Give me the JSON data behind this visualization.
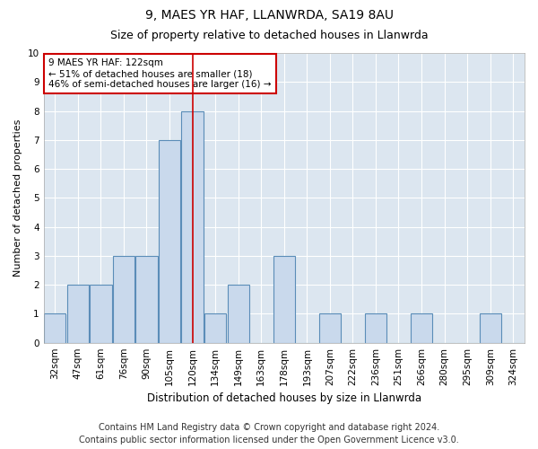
{
  "title1": "9, MAES YR HAF, LLANWRDA, SA19 8AU",
  "title2": "Size of property relative to detached houses in Llanwrda",
  "xlabel": "Distribution of detached houses by size in Llanwrda",
  "ylabel": "Number of detached properties",
  "categories": [
    "32sqm",
    "47sqm",
    "61sqm",
    "76sqm",
    "90sqm",
    "105sqm",
    "120sqm",
    "134sqm",
    "149sqm",
    "163sqm",
    "178sqm",
    "193sqm",
    "207sqm",
    "222sqm",
    "236sqm",
    "251sqm",
    "266sqm",
    "280sqm",
    "295sqm",
    "309sqm",
    "324sqm"
  ],
  "values": [
    1,
    2,
    2,
    3,
    3,
    7,
    8,
    1,
    2,
    0,
    3,
    0,
    1,
    0,
    1,
    0,
    1,
    0,
    0,
    1,
    0
  ],
  "bar_color": "#c9d9ec",
  "bar_edge_color": "#5b8db8",
  "red_line_index": 6,
  "ylim": [
    0,
    10
  ],
  "yticks": [
    0,
    1,
    2,
    3,
    4,
    5,
    6,
    7,
    8,
    9,
    10
  ],
  "annotation_text": "9 MAES YR HAF: 122sqm\n← 51% of detached houses are smaller (18)\n46% of semi-detached houses are larger (16) →",
  "annotation_box_color": "#ffffff",
  "annotation_box_edge_color": "#cc0000",
  "footer1": "Contains HM Land Registry data © Crown copyright and database right 2024.",
  "footer2": "Contains public sector information licensed under the Open Government Licence v3.0.",
  "plot_bg_color": "#dce6f0",
  "fig_bg_color": "#ffffff",
  "grid_color": "#ffffff",
  "title1_fontsize": 10,
  "title2_fontsize": 9,
  "xlabel_fontsize": 8.5,
  "ylabel_fontsize": 8,
  "tick_fontsize": 7.5,
  "annotation_fontsize": 7.5,
  "footer_fontsize": 7
}
